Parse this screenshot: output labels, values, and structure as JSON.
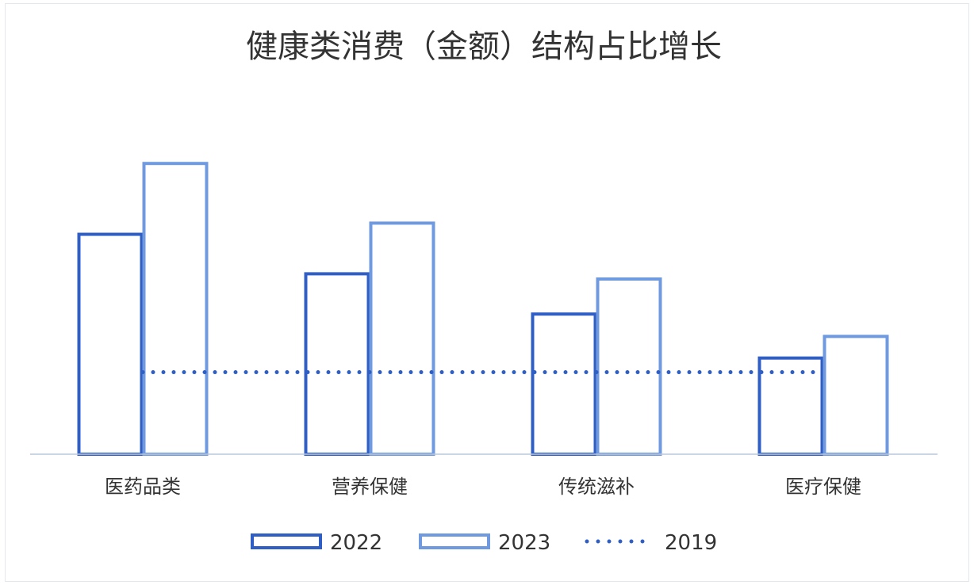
{
  "chart_data": {
    "type": "bar",
    "title": "健康类消费（金额）结构占比增长",
    "xlabel": "",
    "ylabel": "",
    "categories": [
      "医药品类",
      "营养保健",
      "传统滋补",
      "医疗保健"
    ],
    "series": [
      {
        "name": "2022",
        "values": [
          2.95,
          2.42,
          1.88,
          1.29
        ],
        "color": "#2f5fc4",
        "style": "outline-bar"
      },
      {
        "name": "2023",
        "values": [
          3.9,
          3.1,
          2.35,
          1.58
        ],
        "color": "#6f9ae0",
        "style": "outline-bar"
      }
    ],
    "reference_line": {
      "name": "2019",
      "value": 1.1,
      "color": "#2f5fc4",
      "style": "dotted"
    },
    "ylim": [
      0,
      4.2
    ],
    "grid": false,
    "legend_position": "bottom"
  }
}
